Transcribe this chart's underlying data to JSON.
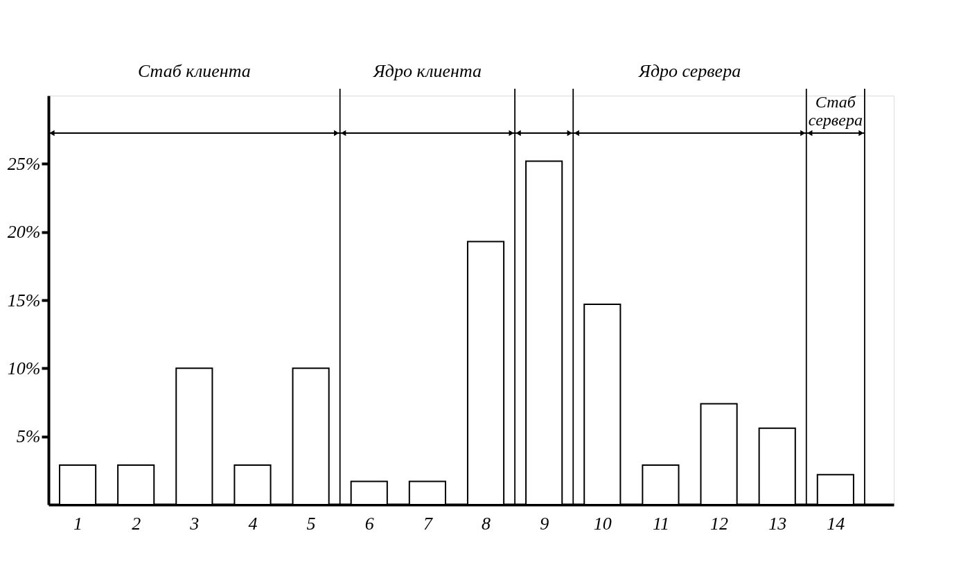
{
  "chart_data": {
    "type": "bar",
    "x": [
      1,
      2,
      3,
      4,
      5,
      6,
      7,
      8,
      9,
      10,
      11,
      12,
      13,
      14
    ],
    "values": [
      2.9,
      2.9,
      10,
      2.9,
      10,
      1.7,
      1.7,
      19.3,
      25.2,
      14.7,
      2.9,
      7.4,
      5.6,
      2.2
    ],
    "color": "#ffffff",
    "xlim": [
      0.5,
      15.0
    ],
    "xticks": [
      1,
      2,
      3,
      4,
      5,
      6,
      7,
      8,
      9,
      10,
      11,
      12,
      13,
      14
    ],
    "ylim": [
      0,
      30
    ],
    "yticks": [
      {
        "value": 5,
        "label": "5%"
      },
      {
        "value": 10,
        "label": "10%"
      },
      {
        "value": 15,
        "label": "15%"
      },
      {
        "value": 20,
        "label": "20%"
      },
      {
        "value": 25,
        "label": "25%"
      }
    ],
    "ref_lines": [
      {
        "axis": "x",
        "value": 5.5,
        "label": null
      },
      {
        "axis": "x",
        "value": 8.5,
        "label": null
      },
      {
        "axis": "x",
        "value": 9.5,
        "label": null
      },
      {
        "axis": "x",
        "value": 13.5,
        "label": null
      },
      {
        "axis": "x",
        "value": 14.5,
        "label": null
      }
    ],
    "annotations": [
      "Стаб клиента",
      "Ядро клиента",
      "Ядро сервера",
      "Стаб сервера"
    ],
    "grid": false
  }
}
